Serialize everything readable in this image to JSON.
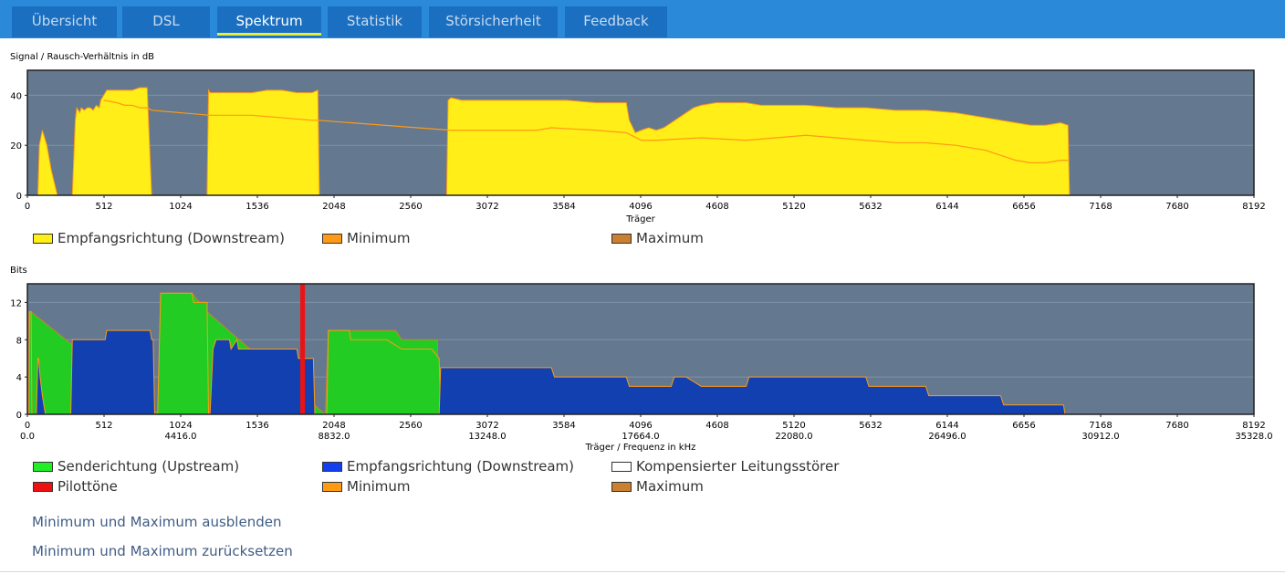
{
  "tabs": [
    {
      "label": "Übersicht",
      "active": false
    },
    {
      "label": "DSL",
      "active": false
    },
    {
      "label": "Spektrum",
      "active": true
    },
    {
      "label": "Statistik",
      "active": false
    },
    {
      "label": "Störsicherheit",
      "active": false
    },
    {
      "label": "Feedback",
      "active": false
    }
  ],
  "colors": {
    "plot_bg": "#64788f",
    "snr_fill": "#ffee17",
    "snr_line": "#ff9a17",
    "upstream": "#23cc23",
    "downstream": "#1240b0",
    "pilot": "#ee1111",
    "minimum": "#ff9a17",
    "maximum": "#c98030",
    "compensated": "#ffffff"
  },
  "chart_data": [
    {
      "type": "area",
      "title": "Signal / Rausch-Verhältnis in dB",
      "xlabel": "Träger",
      "ylabel": "",
      "xlim": [
        0,
        8192
      ],
      "ylim": [
        0,
        50
      ],
      "x_ticks": [
        "0",
        "512",
        "1024",
        "1536",
        "2048",
        "2560",
        "3072",
        "3584",
        "4096",
        "4608",
        "5120",
        "5632",
        "6144",
        "6656",
        "7168",
        "7680",
        "8192"
      ],
      "y_ticks": [
        "0",
        "20",
        "40"
      ],
      "legend": [
        {
          "label": "Empfangsrichtung (Downstream)",
          "color": "#ffee17"
        },
        {
          "label": "Minimum",
          "color": "#ff9a17"
        },
        {
          "label": "Maximum",
          "color": "#c98030"
        }
      ],
      "series": [
        {
          "name": "Empfangsrichtung (Downstream)",
          "x": [
            70,
            80,
            100,
            130,
            160,
            200,
            210,
            220,
            300,
            320,
            330,
            350,
            360,
            380,
            400,
            420,
            440,
            460,
            480,
            490,
            510,
            530,
            560,
            600,
            650,
            700,
            750,
            800,
            830,
            840,
            850,
            1200,
            1210,
            1220,
            1300,
            1400,
            1500,
            1600,
            1700,
            1800,
            1900,
            1940,
            1950,
            2800,
            2810,
            2830,
            2900,
            3000,
            3200,
            3400,
            3600,
            3800,
            3900,
            4000,
            4020,
            4060,
            4100,
            4150,
            4200,
            4250,
            4300,
            4350,
            4400,
            4450,
            4500,
            4600,
            4700,
            4800,
            4900,
            5000,
            5200,
            5400,
            5600,
            5800,
            6000,
            6200,
            6400,
            6600,
            6700,
            6800,
            6900,
            6950,
            6960
          ],
          "y": [
            0,
            20,
            26,
            20,
            10,
            0,
            0,
            0,
            0,
            30,
            35,
            33,
            35,
            34,
            35,
            35,
            34,
            36,
            35,
            38,
            40,
            42,
            42,
            42,
            42,
            42,
            43,
            43,
            0,
            0,
            0,
            0,
            42,
            41,
            41,
            41,
            41,
            42,
            42,
            41,
            41,
            42,
            0,
            0,
            38,
            39,
            38,
            38,
            38,
            38,
            38,
            37,
            37,
            37,
            30,
            25,
            26,
            27,
            26,
            27,
            29,
            31,
            33,
            35,
            36,
            37,
            37,
            37,
            36,
            36,
            36,
            35,
            35,
            34,
            34,
            33,
            31,
            29,
            28,
            28,
            29,
            28,
            0
          ]
        },
        {
          "name": "Minimum",
          "x": [
            510,
            600,
            650,
            700,
            750,
            800,
            830,
            1220,
            1300,
            1500,
            1700,
            1900,
            1940,
            2830,
            3000,
            3200,
            3400,
            3500,
            3800,
            4000,
            4100,
            4200,
            4500,
            4800,
            5000,
            5200,
            5400,
            5600,
            5800,
            6000,
            6200,
            6400,
            6500,
            6600,
            6700,
            6800,
            6900,
            6950
          ],
          "y": [
            38,
            37,
            36,
            36,
            35,
            35,
            34,
            32,
            32,
            32,
            31,
            30,
            30,
            26,
            26,
            26,
            26,
            27,
            26,
            25,
            22,
            22,
            23,
            22,
            23,
            24,
            23,
            22,
            21,
            21,
            20,
            18,
            16,
            14,
            13,
            13,
            14,
            14
          ]
        },
        {
          "name": "Maximum",
          "x": [],
          "y": []
        }
      ]
    },
    {
      "type": "area",
      "title": "Bits",
      "xlabel": "Träger / Frequenz in kHz",
      "ylabel": "",
      "xlim": [
        0,
        8192
      ],
      "ylim": [
        0,
        14
      ],
      "x_ticks": [
        "0",
        "512",
        "1024",
        "1536",
        "2048",
        "2560",
        "3072",
        "3584",
        "4096",
        "4608",
        "5120",
        "5632",
        "6144",
        "6656",
        "7168",
        "7680",
        "8192"
      ],
      "x_ticks2": [
        {
          "x": 0,
          "label": "0.0"
        },
        {
          "x": 1024,
          "label": "4416.0"
        },
        {
          "x": 2048,
          "label": "8832.0"
        },
        {
          "x": 3072,
          "label": "13248.0"
        },
        {
          "x": 4096,
          "label": "17664.0"
        },
        {
          "x": 5120,
          "label": "22080.0"
        },
        {
          "x": 6144,
          "label": "26496.0"
        },
        {
          "x": 7168,
          "label": "30912.0"
        },
        {
          "x": 8192,
          "label": "35328.0"
        }
      ],
      "y_ticks": [
        "0",
        "4",
        "8",
        "12"
      ],
      "legend": [
        {
          "label": "Senderichtung (Upstream)",
          "color": "#23cc23"
        },
        {
          "label": "Empfangsrichtung (Downstream)",
          "color": "#1240b0"
        },
        {
          "label": "Kompensierter Leitungsstörer",
          "color": "#ffffff"
        },
        {
          "label": "Pilottöne",
          "color": "#ee1111"
        },
        {
          "label": "Minimum",
          "color": "#ff9a17"
        },
        {
          "label": "Maximum",
          "color": "#c98030"
        }
      ],
      "series": [
        {
          "name": "Senderichtung (Upstream)",
          "x": [
            10,
            15,
            25,
            30,
            35,
            40,
            860,
            870,
            890,
            1100,
            1110,
            1200,
            1210,
            1990,
            2000,
            2010,
            2150,
            2160,
            2300,
            2400,
            2500,
            2600,
            2700,
            2750,
            2760
          ],
          "y": [
            0,
            11,
            11,
            0,
            0,
            0,
            0,
            0,
            13,
            13,
            12,
            12,
            0,
            0,
            0,
            9,
            9,
            8,
            8,
            8,
            7,
            7,
            7,
            6,
            0
          ]
        },
        {
          "name": "Empfangsrichtung (Downstream)",
          "x": [
            60,
            70,
            75,
            85,
            100,
            120,
            150,
            180,
            200,
            220,
            240,
            260,
            290,
            300,
            320,
            520,
            530,
            820,
            830,
            840,
            850,
            1200,
            1210,
            1220,
            1240,
            1260,
            1350,
            1360,
            1400,
            1410,
            1450,
            1460,
            1500,
            1800,
            1810,
            1900,
            1910,
            1920,
            2750,
            2760,
            2780,
            3500,
            3520,
            3600,
            4000,
            4020,
            4300,
            4320,
            4400,
            4500,
            4520,
            4800,
            4820,
            5600,
            5620,
            6000,
            6020,
            6500,
            6520,
            6920,
            6930
          ],
          "y": [
            0,
            6,
            6,
            4,
            2,
            0,
            0,
            0,
            0,
            0,
            0,
            0,
            0,
            8,
            8,
            8,
            9,
            9,
            8,
            8,
            0,
            0,
            0,
            0,
            7,
            8,
            8,
            7,
            8,
            7,
            7,
            7,
            7,
            7,
            6,
            6,
            6,
            0,
            0,
            5,
            5,
            5,
            4,
            4,
            4,
            3,
            3,
            4,
            4,
            3,
            3,
            3,
            4,
            4,
            3,
            3,
            2,
            2,
            1,
            1,
            0
          ]
        },
        {
          "name": "Pilottöne",
          "x": [
            1838
          ],
          "y": [
            14
          ]
        },
        {
          "name": "Maximum",
          "x": [
            10,
            25,
            880,
            890,
            1100,
            1200,
            1990,
            2010,
            2150,
            2460,
            2500,
            2740
          ],
          "y": [
            11,
            11,
            0,
            13,
            13,
            11,
            0,
            9,
            9,
            9,
            8,
            8
          ]
        }
      ]
    }
  ],
  "links": {
    "hide_minmax": "Minimum und Maximum ausblenden",
    "reset_minmax": "Minimum und Maximum zurücksetzen"
  }
}
